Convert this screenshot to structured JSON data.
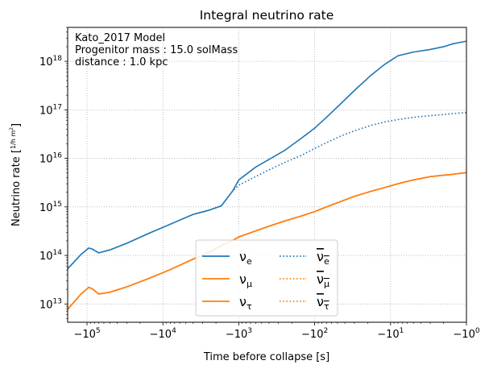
{
  "chart_data": {
    "type": "line",
    "title": "Integral neutrino rate",
    "xlabel": "Time before collapse [s]",
    "ylabel_prefix": "Neutrino rate [",
    "ylabel_num": "1",
    "ylabel_den": "h m",
    "ylabel_den_exp": "2",
    "ylabel_suffix": "]",
    "x_scale": "symlog",
    "y_scale": "log",
    "xlim": [
      -180000,
      -1
    ],
    "ylim": [
      4200000000000.0,
      5e+18
    ],
    "grid": true,
    "annotation_lines": [
      "Kato_2017 Model",
      "Progenitor mass  : 15.0 solMass",
      "distance : 1.0 kpc"
    ],
    "x_ticks": [
      {
        "value": -100000,
        "base": "−10",
        "exp": "5"
      },
      {
        "value": -10000,
        "base": "−10",
        "exp": "4"
      },
      {
        "value": -1000,
        "base": "−10",
        "exp": "3"
      },
      {
        "value": -100,
        "base": "−10",
        "exp": "2"
      },
      {
        "value": -10,
        "base": "−10",
        "exp": "1"
      },
      {
        "value": -1,
        "base": "−10",
        "exp": "0"
      }
    ],
    "y_ticks": [
      {
        "value": 10000000000000.0,
        "base": "10",
        "exp": "13"
      },
      {
        "value": 100000000000000.0,
        "base": "10",
        "exp": "14"
      },
      {
        "value": 1000000000000000.0,
        "base": "10",
        "exp": "15"
      },
      {
        "value": 1e+16,
        "base": "10",
        "exp": "16"
      },
      {
        "value": 1e+17,
        "base": "10",
        "exp": "17"
      },
      {
        "value": 1e+18,
        "base": "10",
        "exp": "18"
      }
    ],
    "legend": {
      "placement": "lower center",
      "columns": 2,
      "entries": [
        {
          "base": "ν",
          "bar": false,
          "sub": "e",
          "color": "#1f77b4",
          "style": "solid"
        },
        {
          "base": "ν",
          "bar": true,
          "sub": "e",
          "color": "#1f77b4",
          "style": "dotted"
        },
        {
          "base": "ν",
          "bar": false,
          "sub": "μ",
          "color": "#ff7f0e",
          "style": "solid"
        },
        {
          "base": "ν",
          "bar": true,
          "sub": "μ",
          "color": "#ff7f0e",
          "style": "dotted"
        },
        {
          "base": "ν",
          "bar": false,
          "sub": "τ",
          "color": "#ff7f0e",
          "style": "solid"
        },
        {
          "base": "ν",
          "bar": true,
          "sub": "τ",
          "color": "#ff7f0e",
          "style": "dotted"
        }
      ]
    },
    "x": [
      -180000,
      -120000,
      -95000,
      -85000,
      -70000,
      -50000,
      -30000,
      -15000,
      -8000,
      -4000,
      -2500,
      -1700,
      -1200,
      -1000,
      -600,
      -400,
      -250,
      -150,
      -100,
      -70,
      -45,
      -30,
      -18,
      -12,
      -8,
      -5,
      -3,
      -2,
      -1.5,
      -1
    ],
    "series": [
      {
        "color": "#1f77b4",
        "style": "solid",
        "values": [
          53000000000000.0,
          105000000000000.0,
          142000000000000.0,
          135000000000000.0,
          113000000000000.0,
          130000000000000.0,
          178000000000000.0,
          290000000000000.0,
          440000000000000.0,
          700000000000000.0,
          850000000000000.0,
          1050000000000000.0,
          2150000000000000.0,
          3600000000000000.0,
          6600000000000000.0,
          9500000000000000.0,
          1.45e+16,
          2.6e+16,
          4.2e+16,
          7e+16,
          1.35e+17,
          2.5e+17,
          5.2e+17,
          8.6e+17,
          1.3e+18,
          1.55e+18,
          1.75e+18,
          2e+18,
          2.3e+18,
          2.6e+18
        ]
      },
      {
        "color": "#1f77b4",
        "style": "dotted",
        "values": [
          53000000000000.0,
          105000000000000.0,
          142000000000000.0,
          135000000000000.0,
          113000000000000.0,
          130000000000000.0,
          178000000000000.0,
          290000000000000.0,
          440000000000000.0,
          700000000000000.0,
          850000000000000.0,
          1050000000000000.0,
          2150000000000000.0,
          2800000000000000.0,
          4200000000000000.0,
          5800000000000000.0,
          8200000000000000.0,
          1.15e+16,
          1.6e+16,
          2.1e+16,
          2.9e+16,
          3.7e+16,
          4.8e+16,
          5.6e+16,
          6.3e+16,
          7e+16,
          7.6e+16,
          8e+16,
          8.4e+16,
          8.8e+16
        ]
      },
      {
        "color": "#ff7f0e",
        "style": "solid",
        "values": [
          7800000000000.0,
          16000000000000.0,
          22000000000000.0,
          20500000000000.0,
          16000000000000.0,
          17500000000000.0,
          22500000000000.0,
          34000000000000.0,
          51000000000000.0,
          84000000000000.0,
          115000000000000.0,
          160000000000000.0,
          205000000000000.0,
          240000000000000.0,
          320000000000000.0,
          400000000000000.0,
          510000000000000.0,
          650000000000000.0,
          800000000000000.0,
          1000000000000000.0,
          1300000000000000.0,
          1650000000000000.0,
          2100000000000000.0,
          2500000000000000.0,
          3000000000000000.0,
          3600000000000000.0,
          4200000000000000.0,
          4500000000000000.0,
          4700000000000000.0,
          5100000000000000.0
        ]
      },
      {
        "color": "#ff7f0e",
        "style": "dotted",
        "values": [
          7800000000000.0,
          16000000000000.0,
          22000000000000.0,
          20500000000000.0,
          16000000000000.0,
          17500000000000.0,
          22500000000000.0,
          34000000000000.0,
          51000000000000.0,
          84000000000000.0,
          115000000000000.0,
          160000000000000.0,
          205000000000000.0,
          240000000000000.0,
          320000000000000.0,
          400000000000000.0,
          510000000000000.0,
          650000000000000.0,
          800000000000000.0,
          1000000000000000.0,
          1300000000000000.0,
          1650000000000000.0,
          2100000000000000.0,
          2500000000000000.0,
          3000000000000000.0,
          3600000000000000.0,
          4200000000000000.0,
          4500000000000000.0,
          4700000000000000.0,
          5100000000000000.0
        ]
      },
      {
        "color": "#ff7f0e",
        "style": "solid",
        "values": [
          7800000000000.0,
          16000000000000.0,
          22000000000000.0,
          20500000000000.0,
          16000000000000.0,
          17500000000000.0,
          22500000000000.0,
          34000000000000.0,
          51000000000000.0,
          84000000000000.0,
          115000000000000.0,
          160000000000000.0,
          205000000000000.0,
          240000000000000.0,
          320000000000000.0,
          400000000000000.0,
          510000000000000.0,
          650000000000000.0,
          800000000000000.0,
          1000000000000000.0,
          1300000000000000.0,
          1650000000000000.0,
          2100000000000000.0,
          2500000000000000.0,
          3000000000000000.0,
          3600000000000000.0,
          4200000000000000.0,
          4500000000000000.0,
          4700000000000000.0,
          5100000000000000.0
        ]
      },
      {
        "color": "#ff7f0e",
        "style": "dotted",
        "values": [
          7800000000000.0,
          16000000000000.0,
          22000000000000.0,
          20500000000000.0,
          16000000000000.0,
          17500000000000.0,
          22500000000000.0,
          34000000000000.0,
          51000000000000.0,
          84000000000000.0,
          115000000000000.0,
          160000000000000.0,
          205000000000000.0,
          240000000000000.0,
          320000000000000.0,
          400000000000000.0,
          510000000000000.0,
          650000000000000.0,
          800000000000000.0,
          1000000000000000.0,
          1300000000000000.0,
          1650000000000000.0,
          2100000000000000.0,
          2500000000000000.0,
          3000000000000000.0,
          3600000000000000.0,
          4200000000000000.0,
          4500000000000000.0,
          4700000000000000.0,
          5100000000000000.0
        ]
      }
    ]
  }
}
